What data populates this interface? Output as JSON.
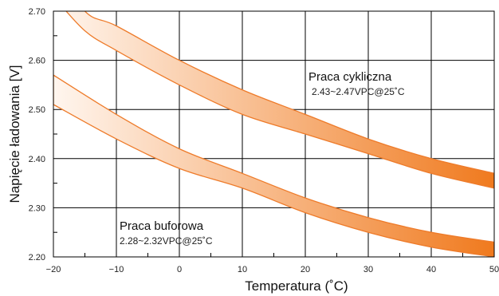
{
  "chart_data": {
    "type": "area",
    "xlabel": "Temperatura (˚C)",
    "ylabel": "Napięcie ładowania [V]",
    "xlim": [
      -20,
      50
    ],
    "ylim": [
      2.2,
      2.7
    ],
    "x_ticks": [
      "−20",
      "−10",
      "0",
      "10",
      "20",
      "30",
      "40",
      "50"
    ],
    "y_ticks": [
      "2.20",
      "2.30",
      "2.40",
      "2.50",
      "2.60",
      "2.70"
    ],
    "grid": true,
    "series": [
      {
        "name": "Praca cykliczna",
        "x": [
          -20,
          -15,
          -10,
          0,
          10,
          20,
          30,
          40,
          50
        ],
        "upper": [
          2.8,
          2.7,
          2.67,
          2.6,
          2.54,
          2.49,
          2.44,
          2.4,
          2.37
        ],
        "lower": [
          2.73,
          2.66,
          2.62,
          2.55,
          2.49,
          2.45,
          2.41,
          2.37,
          2.34
        ]
      },
      {
        "name": "Praca buforowa",
        "x": [
          -20,
          -10,
          0,
          10,
          20,
          30,
          40,
          50
        ],
        "upper": [
          2.57,
          2.49,
          2.42,
          2.37,
          2.32,
          2.28,
          2.25,
          2.23
        ],
        "lower": [
          2.51,
          2.44,
          2.38,
          2.34,
          2.29,
          2.25,
          2.22,
          2.2
        ]
      }
    ],
    "annotations": [
      {
        "title": "Praca cykliczna",
        "subtitle": "2.43~2.47VPC@25˚C"
      },
      {
        "title": "Praca buforowa",
        "subtitle": "2.28~2.32VPC@25˚C"
      }
    ],
    "colors": {
      "band_light": "#fff6ef",
      "band_dark": "#f07a1e",
      "band_edge": "#ee7b2a",
      "grid": "#000000"
    }
  }
}
